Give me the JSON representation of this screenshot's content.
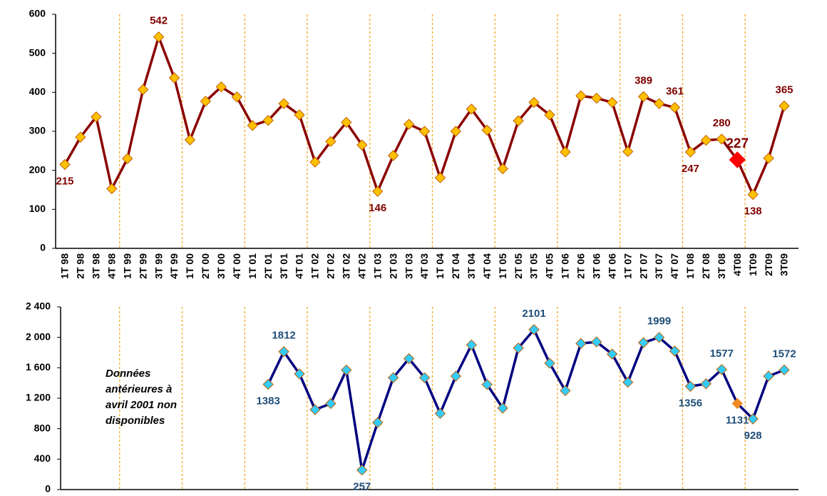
{
  "chart_data": [
    {
      "type": "line",
      "categories": [
        "1T 98",
        "2T 98",
        "3T 98",
        "4T 98",
        "1T 99",
        "2T 99",
        "3T 99",
        "4T 99",
        "1T 00",
        "2T 00",
        "3T 00",
        "4T 00",
        "1T 01",
        "2T 01",
        "3T 01",
        "4T 01",
        "1T 02",
        "2T 02",
        "3T 02",
        "4T 02",
        "1T 03",
        "2T 03",
        "3T 03",
        "4T 03",
        "1T 04",
        "2T 04",
        "3T 04",
        "4T 04",
        "1T 05",
        "2T 05",
        "3T 05",
        "4T 05",
        "1T 06",
        "2T 06",
        "3T 06",
        "4T 06",
        "1T 07",
        "2T 07",
        "3T 07",
        "4T 07",
        "1T 08",
        "2T 08",
        "3T 08",
        "4T08",
        "1T09",
        "2T09",
        "3T09"
      ],
      "series": [
        {
          "color": "#8b0000",
          "marker_color": "#ffc000",
          "values": [
            215,
            285,
            337,
            153,
            230,
            407,
            542,
            437,
            278,
            377,
            414,
            388,
            315,
            328,
            371,
            342,
            221,
            274,
            323,
            265,
            146,
            238,
            318,
            300,
            181,
            300,
            357,
            303,
            204,
            327,
            374,
            342,
            247,
            391,
            385,
            374,
            248,
            389,
            371,
            361,
            247,
            277,
            280,
            227,
            138,
            231,
            365
          ],
          "value_labels": [
            "215",
            null,
            null,
            null,
            null,
            null,
            "542",
            null,
            null,
            null,
            null,
            null,
            null,
            null,
            null,
            null,
            null,
            null,
            null,
            null,
            "146",
            null,
            null,
            null,
            null,
            null,
            null,
            null,
            null,
            null,
            null,
            null,
            null,
            null,
            null,
            null,
            null,
            "389",
            null,
            "361",
            "247",
            null,
            "280",
            "227",
            "138",
            null,
            "365"
          ],
          "highlight": {
            "category": "4T08",
            "color": "#ff0000"
          }
        }
      ],
      "ylim": [
        0,
        600
      ],
      "yticks": [
        0,
        100,
        200,
        300,
        400,
        500,
        600
      ],
      "grid_color": "#f5a623"
    },
    {
      "type": "line",
      "series": [
        {
          "color": "#000080",
          "marker_color": "#33ccff",
          "values": [
            null,
            null,
            null,
            null,
            null,
            null,
            null,
            null,
            null,
            null,
            null,
            null,
            null,
            1383,
            1812,
            1520,
            1050,
            1130,
            1570,
            257,
            880,
            1470,
            1720,
            1470,
            1000,
            1490,
            1900,
            1380,
            1070,
            1860,
            2101,
            1660,
            1300,
            1920,
            1940,
            1780,
            1410,
            1930,
            1999,
            1820,
            1356,
            1390,
            1577,
            1131,
            928,
            1490,
            1572
          ],
          "value_labels": [
            null,
            null,
            null,
            null,
            null,
            null,
            null,
            null,
            null,
            null,
            null,
            null,
            null,
            "1383",
            "1812",
            null,
            null,
            null,
            null,
            "257",
            null,
            null,
            null,
            null,
            null,
            null,
            null,
            null,
            null,
            null,
            "2101",
            null,
            null,
            null,
            null,
            null,
            null,
            null,
            "1999",
            null,
            "1356",
            null,
            "1577",
            "1131",
            "928",
            null,
            "1572"
          ],
          "highlight": {
            "category": "4T08",
            "color": "#f08a24"
          }
        }
      ],
      "ylim": [
        0,
        2400
      ],
      "yticks": [
        0,
        400,
        800,
        {
          "value": 1200,
          "label": "1 200"
        },
        {
          "value": 1600,
          "label": "1 600"
        },
        {
          "value": 2000,
          "label": "2 000"
        },
        {
          "value": 2400,
          "label": "2 400"
        }
      ],
      "annotation": [
        "Données",
        "antérieures à",
        "avril 2001 non",
        "disponibles"
      ],
      "grid_color": "#f5a623"
    }
  ]
}
